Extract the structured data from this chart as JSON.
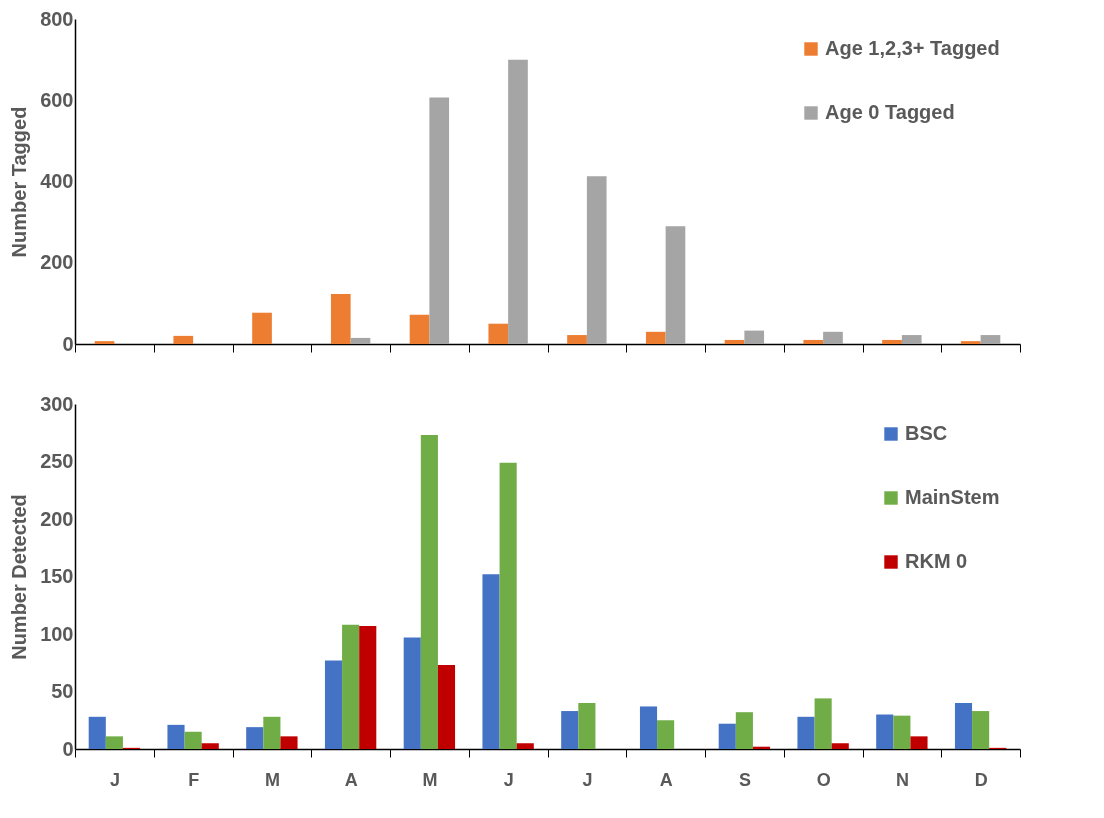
{
  "chart_data": [
    {
      "type": "bar",
      "ylabel": "Number Tagged",
      "categories": [
        null,
        null,
        null,
        null,
        null,
        null,
        null,
        null,
        null,
        null,
        null,
        null
      ],
      "series": [
        {
          "name": "Age 1,2,3+ Tagged",
          "color": "#ed7d31",
          "values": [
            7,
            20,
            77,
            123,
            72,
            50,
            22,
            30,
            10,
            10,
            10,
            7
          ]
        },
        {
          "name": "Age 0 Tagged",
          "color": "#a5a5a5",
          "values": [
            null,
            null,
            null,
            15,
            607,
            700,
            413,
            290,
            33,
            30,
            22,
            22
          ]
        }
      ],
      "ylim": [
        0,
        800
      ],
      "yticks": [
        0,
        200,
        400,
        600,
        800
      ],
      "legend": "top right",
      "tick_labels": "y"
    },
    {
      "type": "bar",
      "ylabel": "Number Detected",
      "categories": [
        "J",
        "F",
        "M",
        "A",
        "M",
        "J",
        "J",
        "A",
        "S",
        "O",
        "N",
        "D"
      ],
      "series": [
        {
          "name": "BSC",
          "color": "#4472c4",
          "values": [
            28,
            21,
            19,
            77,
            97,
            152,
            33,
            37,
            22,
            28,
            30,
            40
          ]
        },
        {
          "name": "MainStem",
          "color": "#70ad47",
          "values": [
            11,
            15,
            28,
            108,
            273,
            249,
            40,
            25,
            32,
            44,
            29,
            33
          ]
        },
        {
          "name": "RKM 0",
          "color": "#c00000",
          "values": [
            1,
            5,
            11,
            107,
            73,
            5,
            null,
            null,
            2,
            5,
            11,
            1
          ]
        }
      ],
      "ylim": [
        0,
        300
      ],
      "yticks": [
        0,
        50,
        100,
        150,
        200,
        250,
        300
      ],
      "legend": "top right"
    }
  ]
}
